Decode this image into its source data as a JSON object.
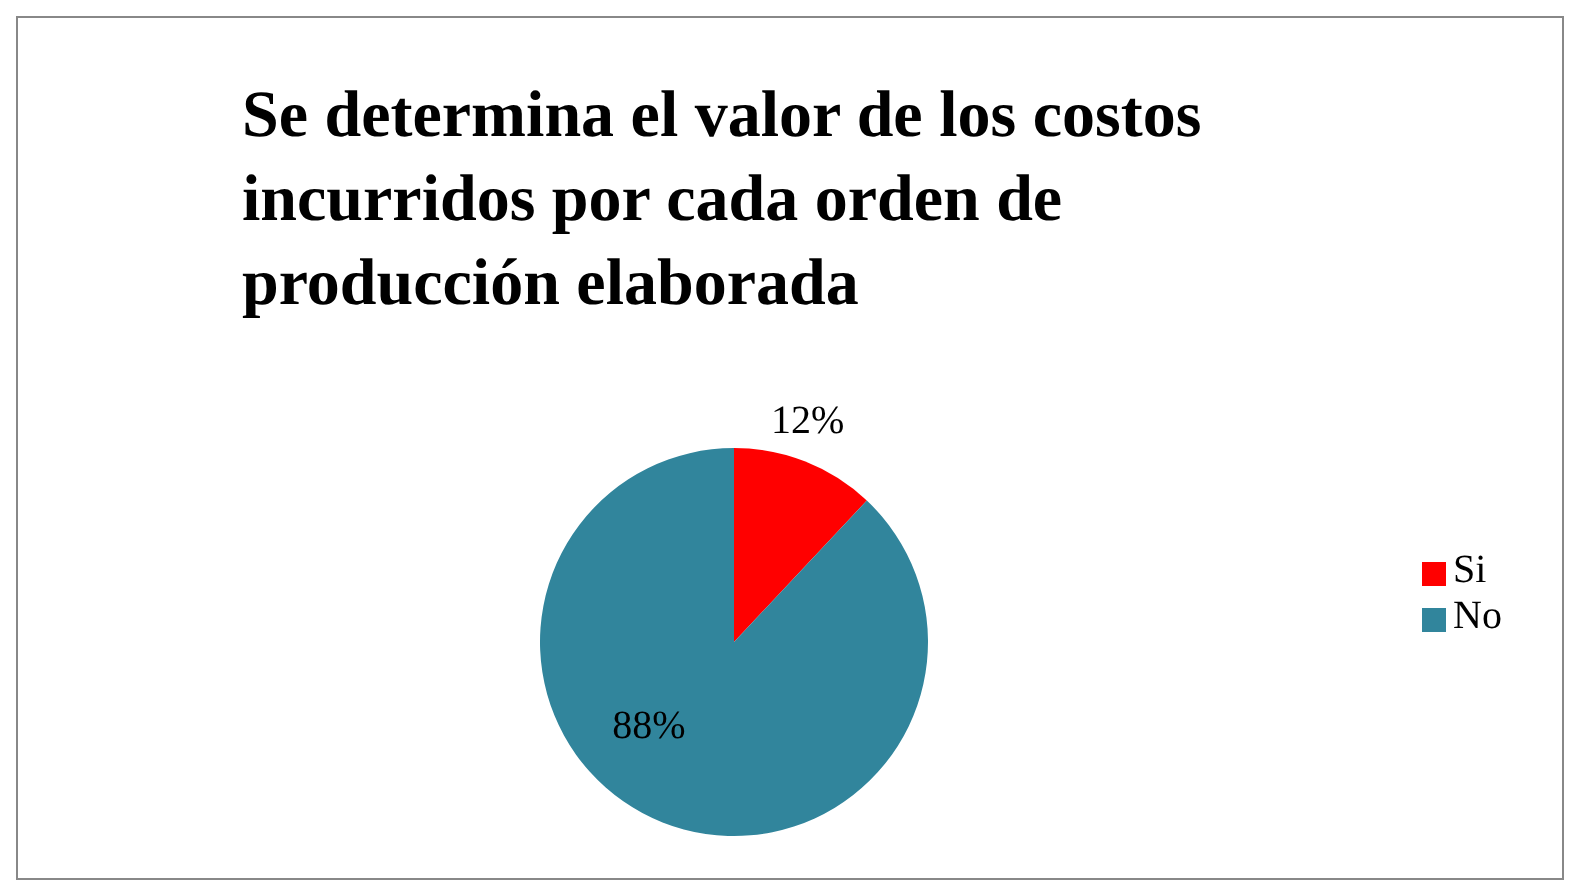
{
  "chart_data": {
    "type": "pie",
    "title": "Se determina el valor de los costos incurridos por cada orden de producción elaborada",
    "categories": [
      "Si",
      "No"
    ],
    "values": [
      12,
      88
    ],
    "colors": [
      "#ff0000",
      "#31859c"
    ],
    "value_labels": [
      "12%",
      "88%"
    ],
    "legend": "right"
  }
}
